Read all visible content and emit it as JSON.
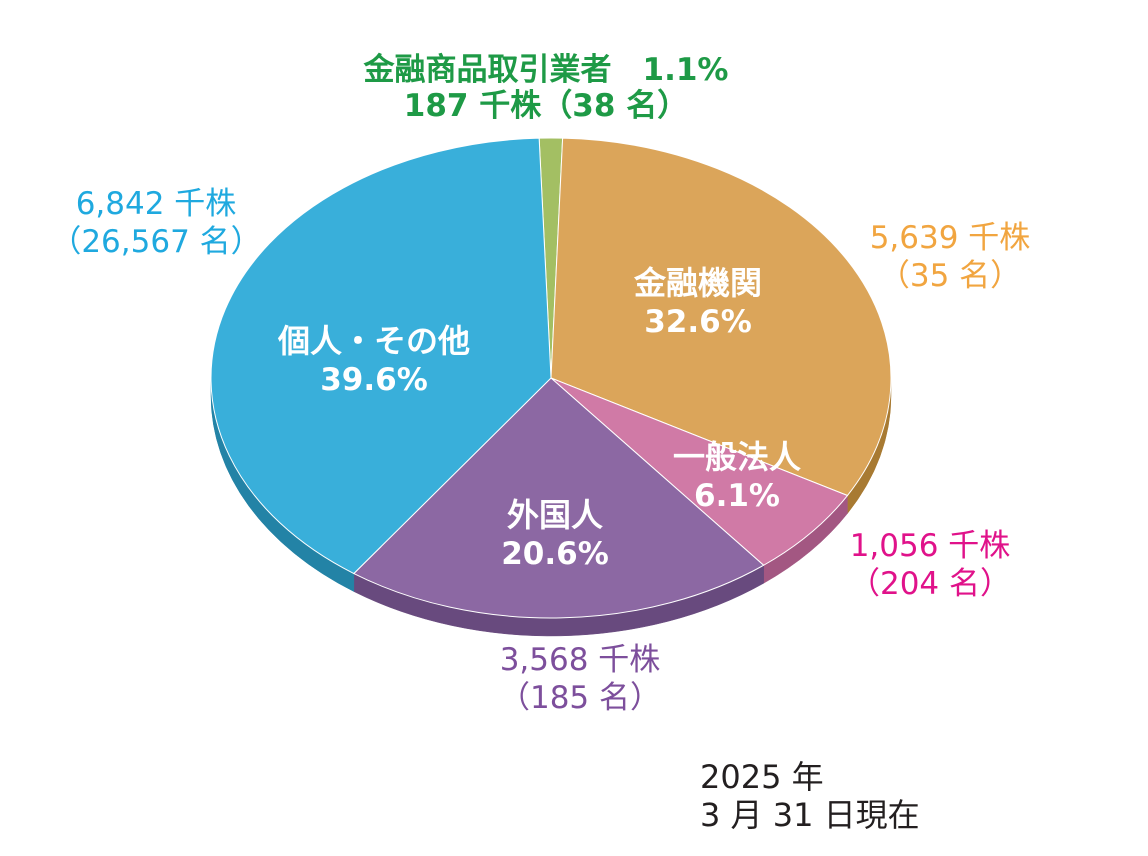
{
  "chart_data": {
    "type": "pie",
    "slices": [
      {
        "name": "金融商品取引業者",
        "percent_label": "1.1%",
        "value": 1.1,
        "shares": "187 千株",
        "holders": "（38 名）",
        "color": "#a3bf63",
        "side": "#7e9a45",
        "label_color": "#1e9a46"
      },
      {
        "name": "金融機関",
        "percent_label": "32.6%",
        "value": 32.6,
        "shares": "5,639 千株",
        "holders": "（35 名）",
        "color": "#dba55a",
        "side": "#a87a32",
        "label_color": "#f1a540"
      },
      {
        "name": "一般法人",
        "percent_label": "6.1%",
        "value": 6.1,
        "shares": "1,056 千株",
        "holders": "（204 名）",
        "color": "#d07aa6",
        "side": "#a35782",
        "label_color": "#e0128a"
      },
      {
        "name": "外国人",
        "percent_label": "20.6%",
        "value": 20.6,
        "shares": "3,568 千株",
        "holders": "（185 名）",
        "color": "#8c68a3",
        "side": "#684a7e",
        "label_color": "#7d4f9c"
      },
      {
        "name": "個人・その他",
        "percent_label": "39.6%",
        "value": 39.6,
        "shares": "6,842 千株",
        "holders": "（26,567 名）",
        "color": "#39afda",
        "side": "#2383a6",
        "label_color": "#1fa9df"
      }
    ]
  },
  "footer": {
    "year_line": "2025 年",
    "date_line": "3 月 31 日現在"
  }
}
